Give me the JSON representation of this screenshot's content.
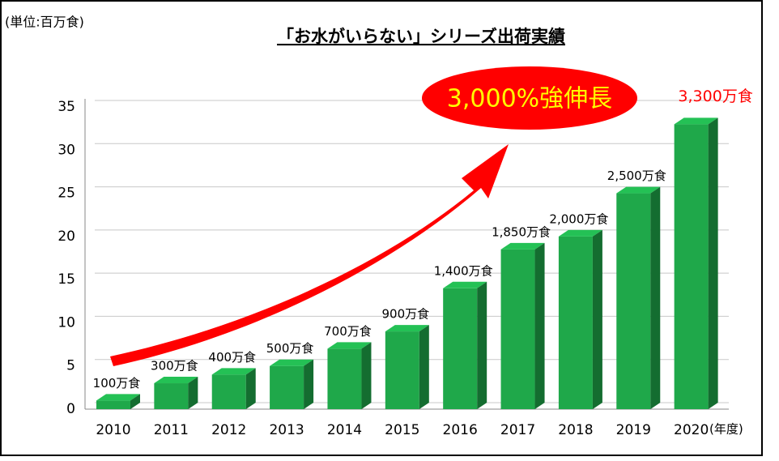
{
  "chart_data": {
    "type": "bar3d",
    "title": "「お水がいらない」シリーズ出荷実績",
    "ylabel": "(単位:百万食)",
    "xlabel": "(年度)",
    "annotation": "3,000%強伸長",
    "categories": [
      "2010",
      "2011",
      "2012",
      "2013",
      "2014",
      "2015",
      "2016",
      "2017",
      "2018",
      "2019",
      "2020"
    ],
    "values": [
      1,
      3,
      4,
      5,
      7,
      9,
      14,
      18.5,
      20,
      25,
      33
    ],
    "value_labels": [
      "100万食",
      "300万食",
      "400万食",
      "500万食",
      "700万食",
      "900万食",
      "1,400万食",
      "1,850万食",
      "2,000万食",
      "2,500万食",
      "3,300万食"
    ],
    "value_label_colors": [
      "#000000",
      "#000000",
      "#000000",
      "#000000",
      "#000000",
      "#000000",
      "#000000",
      "#000000",
      "#000000",
      "#000000",
      "#ff0000"
    ],
    "color": "#1fa84a",
    "ylim": [
      0,
      35
    ],
    "yticks": [
      0,
      5,
      10,
      15,
      20,
      25,
      30,
      35
    ],
    "grid": true
  }
}
